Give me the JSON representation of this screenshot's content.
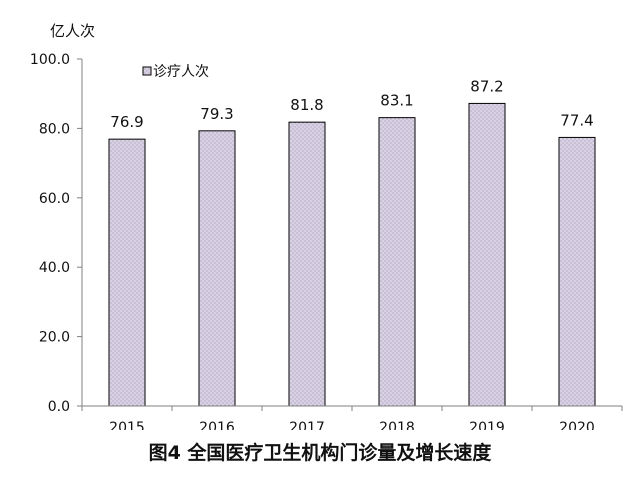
{
  "chart_data": {
    "type": "bar",
    "unit_label": "亿人次",
    "categories": [
      "2015",
      "2016",
      "2017",
      "2018",
      "2019",
      "2020"
    ],
    "series": [
      {
        "name": "诊疗人次",
        "values": [
          76.9,
          79.3,
          81.8,
          83.1,
          87.2,
          77.4
        ]
      }
    ],
    "data_labels": [
      "76.9",
      "79.3",
      "81.8",
      "83.1",
      "87.2",
      "77.4"
    ],
    "ylim": [
      0,
      100
    ],
    "yticks": [
      0,
      20,
      40,
      60,
      80,
      100
    ],
    "ytick_labels": [
      "0.0",
      "20.0",
      "40.0",
      "60.0",
      "80.0",
      "100.0"
    ],
    "grid": false,
    "legend_position": "top-left",
    "colors": {
      "bar_fill": "#d4cce0",
      "bar_stroke": "#000000",
      "axis": "#808080"
    }
  },
  "caption": "图4  全国医疗卫生机构门诊量及增长速度"
}
